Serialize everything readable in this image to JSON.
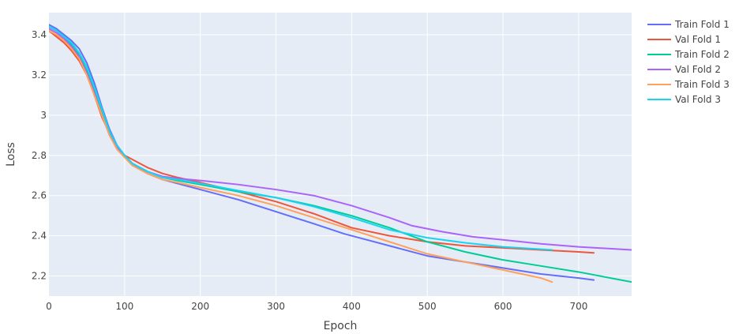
{
  "chart_data": {
    "type": "line",
    "title": "",
    "xlabel": "Epoch",
    "ylabel": "Loss",
    "xlim": [
      0,
      770
    ],
    "ylim": [
      2.1,
      3.51
    ],
    "x_ticks": [
      0,
      100,
      200,
      300,
      400,
      500,
      600,
      700
    ],
    "x_tick_labels": [
      "0",
      "100",
      "200",
      "300",
      "400",
      "500",
      "600",
      "700"
    ],
    "y_ticks": [
      2.2,
      2.4,
      2.6,
      2.8,
      3.0,
      3.2,
      3.4
    ],
    "y_tick_labels": [
      "2.2",
      "2.4",
      "2.6",
      "2.8",
      "3",
      "3.2",
      "3.4"
    ],
    "grid": true,
    "legend": "right",
    "background": "#e5ecf6",
    "series": [
      {
        "name": "Train Fold 1",
        "color": "#636efa",
        "x": [
          0,
          10,
          20,
          30,
          40,
          50,
          60,
          70,
          80,
          90,
          100,
          110,
          130,
          150,
          170,
          200,
          250,
          300,
          350,
          390,
          420,
          460,
          500,
          550,
          600,
          650,
          700,
          720
        ],
        "y": [
          3.45,
          3.43,
          3.4,
          3.37,
          3.33,
          3.26,
          3.16,
          3.04,
          2.93,
          2.85,
          2.8,
          2.76,
          2.71,
          2.68,
          2.66,
          2.63,
          2.58,
          2.52,
          2.46,
          2.41,
          2.38,
          2.34,
          2.3,
          2.27,
          2.24,
          2.21,
          2.19,
          2.18
        ]
      },
      {
        "name": "Val Fold 1",
        "color": "#ef553b",
        "x": [
          0,
          10,
          20,
          30,
          40,
          50,
          60,
          70,
          80,
          90,
          100,
          110,
          130,
          150,
          170,
          200,
          250,
          300,
          350,
          400,
          450,
          500,
          550,
          600,
          650,
          700,
          720
        ],
        "y": [
          3.42,
          3.39,
          3.36,
          3.32,
          3.27,
          3.2,
          3.1,
          2.99,
          2.91,
          2.84,
          2.8,
          2.78,
          2.74,
          2.71,
          2.69,
          2.665,
          2.62,
          2.57,
          2.51,
          2.44,
          2.4,
          2.37,
          2.35,
          2.34,
          2.33,
          2.32,
          2.315
        ]
      },
      {
        "name": "Train Fold 2",
        "color": "#00cc96",
        "x": [
          0,
          10,
          20,
          30,
          40,
          50,
          60,
          70,
          80,
          90,
          100,
          110,
          130,
          150,
          170,
          200,
          250,
          300,
          350,
          400,
          450,
          500,
          550,
          600,
          650,
          700,
          770
        ],
        "y": [
          3.44,
          3.42,
          3.39,
          3.35,
          3.3,
          3.22,
          3.12,
          3.01,
          2.91,
          2.84,
          2.8,
          2.76,
          2.72,
          2.69,
          2.675,
          2.655,
          2.62,
          2.59,
          2.55,
          2.5,
          2.44,
          2.37,
          2.32,
          2.28,
          2.25,
          2.22,
          2.17
        ]
      },
      {
        "name": "Val Fold 2",
        "color": "#ab63fa",
        "x": [
          0,
          10,
          20,
          30,
          40,
          50,
          60,
          70,
          80,
          90,
          100,
          110,
          130,
          150,
          170,
          200,
          250,
          300,
          350,
          400,
          450,
          480,
          520,
          560,
          600,
          650,
          700,
          770
        ],
        "y": [
          3.43,
          3.41,
          3.38,
          3.34,
          3.29,
          3.21,
          3.11,
          3.0,
          2.9,
          2.84,
          2.8,
          2.76,
          2.72,
          2.695,
          2.685,
          2.675,
          2.655,
          2.63,
          2.6,
          2.55,
          2.49,
          2.45,
          2.42,
          2.395,
          2.38,
          2.36,
          2.345,
          2.33
        ]
      },
      {
        "name": "Train Fold 3",
        "color": "#ffa15a",
        "x": [
          0,
          10,
          20,
          30,
          40,
          50,
          60,
          70,
          80,
          90,
          100,
          110,
          130,
          150,
          170,
          200,
          250,
          300,
          350,
          400,
          450,
          500,
          550,
          600,
          650,
          665
        ],
        "y": [
          3.42,
          3.4,
          3.37,
          3.33,
          3.28,
          3.2,
          3.1,
          3.0,
          2.9,
          2.83,
          2.79,
          2.75,
          2.71,
          2.68,
          2.665,
          2.64,
          2.6,
          2.55,
          2.49,
          2.43,
          2.37,
          2.31,
          2.27,
          2.23,
          2.19,
          2.17
        ]
      },
      {
        "name": "Val Fold 3",
        "color": "#19d3f3",
        "x": [
          0,
          10,
          20,
          30,
          40,
          50,
          60,
          70,
          80,
          90,
          100,
          110,
          130,
          150,
          170,
          200,
          250,
          300,
          350,
          400,
          450,
          500,
          550,
          600,
          665
        ],
        "y": [
          3.44,
          3.42,
          3.39,
          3.36,
          3.31,
          3.24,
          3.14,
          3.03,
          2.92,
          2.85,
          2.8,
          2.76,
          2.72,
          2.69,
          2.68,
          2.66,
          2.625,
          2.59,
          2.545,
          2.49,
          2.43,
          2.39,
          2.365,
          2.345,
          2.33
        ]
      }
    ]
  }
}
